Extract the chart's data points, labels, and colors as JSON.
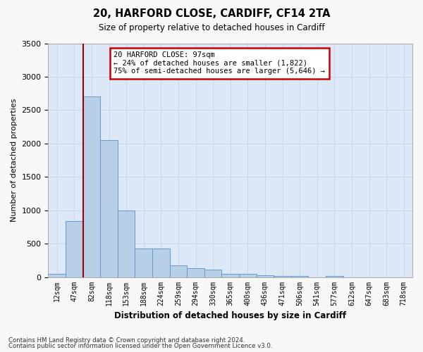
{
  "title": "20, HARFORD CLOSE, CARDIFF, CF14 2TA",
  "subtitle": "Size of property relative to detached houses in Cardiff",
  "xlabel": "Distribution of detached houses by size in Cardiff",
  "ylabel": "Number of detached properties",
  "bin_labels": [
    "12sqm",
    "47sqm",
    "82sqm",
    "118sqm",
    "153sqm",
    "188sqm",
    "224sqm",
    "259sqm",
    "294sqm",
    "330sqm",
    "365sqm",
    "400sqm",
    "436sqm",
    "471sqm",
    "506sqm",
    "541sqm",
    "577sqm",
    "612sqm",
    "647sqm",
    "683sqm",
    "718sqm"
  ],
  "bar_values": [
    50,
    840,
    2700,
    2050,
    1000,
    430,
    430,
    170,
    130,
    110,
    50,
    50,
    30,
    20,
    20,
    0,
    20,
    0,
    0,
    0,
    0
  ],
  "bar_color": "#b8cfe8",
  "bar_edge_color": "#6699cc",
  "vline_x_idx": 2,
  "vline_color": "#990000",
  "annotation_text": "20 HARFORD CLOSE: 97sqm\n← 24% of detached houses are smaller (1,822)\n75% of semi-detached houses are larger (5,646) →",
  "annotation_box_facecolor": "#ffffff",
  "annotation_box_edgecolor": "#cc0000",
  "ylim": [
    0,
    3500
  ],
  "yticks": [
    0,
    500,
    1000,
    1500,
    2000,
    2500,
    3000,
    3500
  ],
  "grid_color": "#c8d4e8",
  "bg_color": "#dce8f8",
  "fig_facecolor": "#f8f8f8",
  "footnote_line1": "Contains HM Land Registry data © Crown copyright and database right 2024.",
  "footnote_line2": "Contains public sector information licensed under the Open Government Licence v3.0."
}
